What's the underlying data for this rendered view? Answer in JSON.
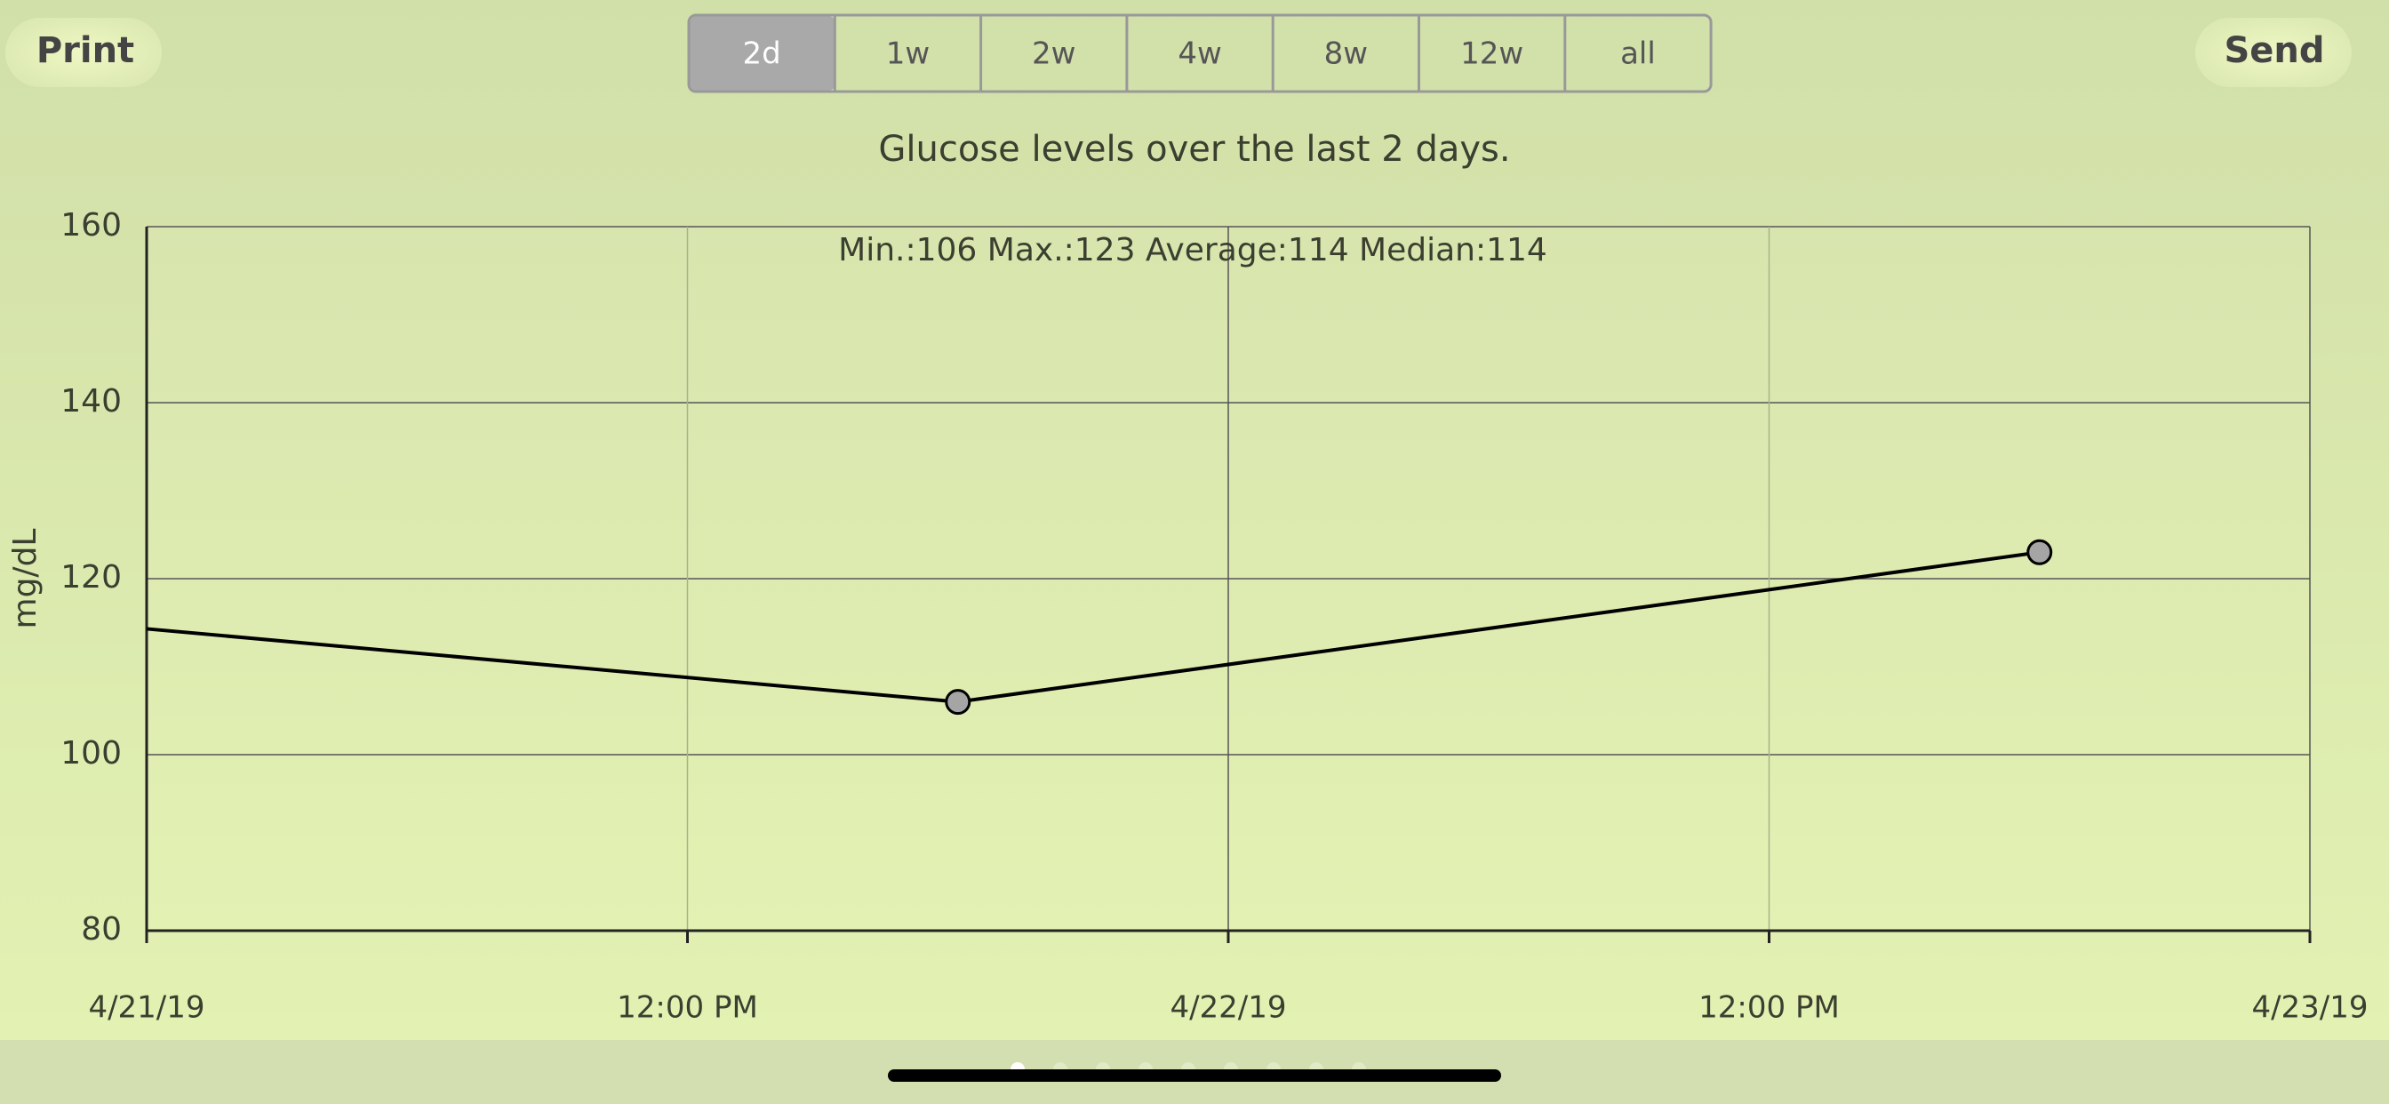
{
  "toolbar": {
    "print": "Print",
    "send": "Send",
    "ranges": [
      "2d",
      "1w",
      "2w",
      "4w",
      "8w",
      "12w",
      "all"
    ],
    "selected": 0
  },
  "chart_data": {
    "type": "line",
    "title": "Glucose levels over the last 2 days.",
    "annotation": "Min.:106 Max.:123 Average:114 Median:114",
    "y_label": "mg/dL",
    "x": [
      0,
      18,
      42
    ],
    "series": [
      {
        "name": "Glucose",
        "color": "#000000",
        "values": [
          114.3,
          106,
          123
        ]
      }
    ],
    "xlim": [
      0,
      48
    ],
    "xticks": [
      {
        "value": 0,
        "label": "4/21/19"
      },
      {
        "value": 12,
        "label": "12:00 PM"
      },
      {
        "value": 24,
        "label": "4/22/19"
      },
      {
        "value": 36,
        "label": "12:00 PM"
      },
      {
        "value": 48,
        "label": "4/23/19"
      }
    ],
    "ylim": [
      80,
      160
    ],
    "yticks": [
      80,
      100,
      120,
      140,
      160
    ],
    "grid": true
  },
  "pager": {
    "count": 9,
    "current": 0
  }
}
